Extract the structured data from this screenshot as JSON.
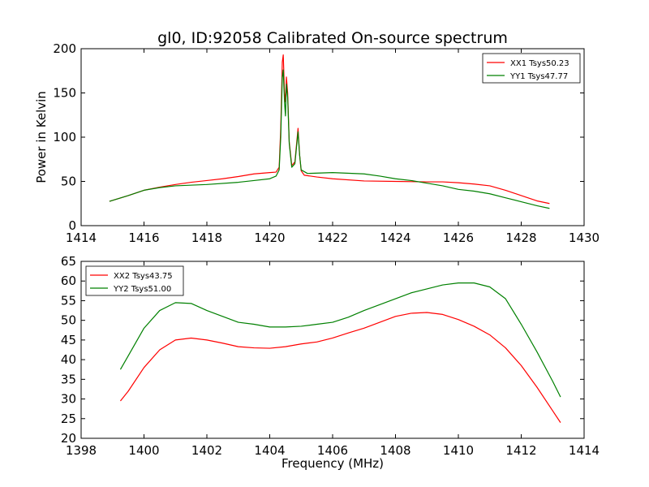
{
  "title": "gl0, ID:92058 Calibrated On-source spectrum",
  "chart_data": [
    {
      "type": "line",
      "title": "gl0, ID:92058 Calibrated On-source spectrum",
      "xlabel": "",
      "ylabel": "Power in Kelvin",
      "xlim": [
        1414,
        1430
      ],
      "ylim": [
        0,
        200
      ],
      "xticks": [
        "1414",
        "1416",
        "1418",
        "1420",
        "1422",
        "1424",
        "1426",
        "1428",
        "1430"
      ],
      "yticks": [
        "0",
        "50",
        "100",
        "150",
        "200"
      ],
      "grid": false,
      "legend_position": "top-right",
      "series": [
        {
          "name": "XX1 Tsys50.23",
          "color": "#ff0000",
          "points": [
            [
              1414.9,
              27.5
            ],
            [
              1415.5,
              34
            ],
            [
              1416,
              40
            ],
            [
              1416.5,
              43.5
            ],
            [
              1417,
              46.5
            ],
            [
              1417.5,
              49
            ],
            [
              1418,
              51
            ],
            [
              1418.5,
              53
            ],
            [
              1419,
              55.5
            ],
            [
              1419.5,
              58.5
            ],
            [
              1420,
              60
            ],
            [
              1420.2,
              60.5
            ],
            [
              1420.3,
              66
            ],
            [
              1420.35,
              110
            ],
            [
              1420.4,
              185
            ],
            [
              1420.43,
              193
            ],
            [
              1420.47,
              150
            ],
            [
              1420.5,
              140
            ],
            [
              1420.53,
              168
            ],
            [
              1420.57,
              150
            ],
            [
              1420.62,
              95
            ],
            [
              1420.7,
              68
            ],
            [
              1420.8,
              72
            ],
            [
              1420.9,
              110
            ],
            [
              1420.95,
              80
            ],
            [
              1421,
              62
            ],
            [
              1421.1,
              57
            ],
            [
              1421.5,
              55
            ],
            [
              1422,
              53
            ],
            [
              1423,
              50.5
            ],
            [
              1424,
              50
            ],
            [
              1425,
              49.5
            ],
            [
              1425.5,
              49.5
            ],
            [
              1426,
              48.5
            ],
            [
              1426.5,
              47
            ],
            [
              1427,
              45
            ],
            [
              1427.5,
              40
            ],
            [
              1428,
              34
            ],
            [
              1428.5,
              28
            ],
            [
              1428.9,
              25
            ]
          ]
        },
        {
          "name": "YY1 Tsys47.77",
          "color": "#008000",
          "points": [
            [
              1414.9,
              27.5
            ],
            [
              1415.5,
              34
            ],
            [
              1416,
              40
            ],
            [
              1416.5,
              43
            ],
            [
              1417,
              45
            ],
            [
              1418,
              46.5
            ],
            [
              1419,
              49
            ],
            [
              1419.5,
              51
            ],
            [
              1420,
              53
            ],
            [
              1420.2,
              56
            ],
            [
              1420.3,
              63
            ],
            [
              1420.35,
              100
            ],
            [
              1420.4,
              168
            ],
            [
              1420.43,
              176
            ],
            [
              1420.47,
              140
            ],
            [
              1420.5,
              124
            ],
            [
              1420.53,
              160
            ],
            [
              1420.57,
              145
            ],
            [
              1420.62,
              93
            ],
            [
              1420.7,
              66
            ],
            [
              1420.8,
              70
            ],
            [
              1420.9,
              106
            ],
            [
              1420.95,
              80
            ],
            [
              1421,
              63
            ],
            [
              1421.2,
              59
            ],
            [
              1422,
              60
            ],
            [
              1423,
              58.5
            ],
            [
              1423.5,
              56
            ],
            [
              1424,
              53
            ],
            [
              1424.5,
              51
            ],
            [
              1425,
              48
            ],
            [
              1425.5,
              45
            ],
            [
              1426,
              41
            ],
            [
              1426.5,
              39
            ],
            [
              1427,
              36
            ],
            [
              1427.5,
              31.5
            ],
            [
              1428,
              27
            ],
            [
              1428.5,
              22.5
            ],
            [
              1428.9,
              19.5
            ]
          ]
        }
      ]
    },
    {
      "type": "line",
      "title": "",
      "xlabel": "Frequency (MHz)",
      "ylabel": "",
      "xlim": [
        1398,
        1414
      ],
      "ylim": [
        20,
        65
      ],
      "xticks": [
        "1398",
        "1400",
        "1402",
        "1404",
        "1406",
        "1408",
        "1410",
        "1412",
        "1414"
      ],
      "yticks": [
        "20",
        "25",
        "30",
        "35",
        "40",
        "45",
        "50",
        "55",
        "60",
        "65"
      ],
      "grid": false,
      "legend_position": "top-left",
      "series": [
        {
          "name": "XX2 Tsys43.75",
          "color": "#ff0000",
          "points": [
            [
              1399.25,
              29.5
            ],
            [
              1399.5,
              32
            ],
            [
              1400,
              38
            ],
            [
              1400.5,
              42.5
            ],
            [
              1401,
              45
            ],
            [
              1401.5,
              45.5
            ],
            [
              1402,
              45
            ],
            [
              1402.5,
              44.2
            ],
            [
              1403,
              43.3
            ],
            [
              1403.5,
              43
            ],
            [
              1404,
              42.9
            ],
            [
              1404.5,
              43.3
            ],
            [
              1405,
              44
            ],
            [
              1405.5,
              44.5
            ],
            [
              1406,
              45.5
            ],
            [
              1406.5,
              46.8
            ],
            [
              1407,
              48
            ],
            [
              1407.5,
              49.5
            ],
            [
              1408,
              51
            ],
            [
              1408.5,
              51.8
            ],
            [
              1409,
              52
            ],
            [
              1409.5,
              51.5
            ],
            [
              1410,
              50.2
            ],
            [
              1410.5,
              48.5
            ],
            [
              1411,
              46.3
            ],
            [
              1411.5,
              43
            ],
            [
              1412,
              38.5
            ],
            [
              1412.5,
              33
            ],
            [
              1413,
              27
            ],
            [
              1413.25,
              24
            ]
          ]
        },
        {
          "name": "YY2 Tsys51.00",
          "color": "#008000",
          "points": [
            [
              1399.25,
              37.5
            ],
            [
              1399.5,
              41
            ],
            [
              1400,
              48
            ],
            [
              1400.5,
              52.5
            ],
            [
              1401,
              54.5
            ],
            [
              1401.5,
              54.3
            ],
            [
              1402,
              52.5
            ],
            [
              1402.5,
              51
            ],
            [
              1403,
              49.5
            ],
            [
              1403.5,
              49
            ],
            [
              1404,
              48.3
            ],
            [
              1404.5,
              48.3
            ],
            [
              1405,
              48.5
            ],
            [
              1405.5,
              49
            ],
            [
              1406,
              49.5
            ],
            [
              1406.5,
              50.8
            ],
            [
              1407,
              52.5
            ],
            [
              1407.5,
              54
            ],
            [
              1408,
              55.5
            ],
            [
              1408.5,
              57
            ],
            [
              1409,
              58
            ],
            [
              1409.5,
              59
            ],
            [
              1410,
              59.5
            ],
            [
              1410.5,
              59.5
            ],
            [
              1411,
              58.5
            ],
            [
              1411.5,
              55.5
            ],
            [
              1412,
              49
            ],
            [
              1412.5,
              42
            ],
            [
              1413,
              34.5
            ],
            [
              1413.25,
              30.5
            ]
          ]
        }
      ]
    }
  ]
}
